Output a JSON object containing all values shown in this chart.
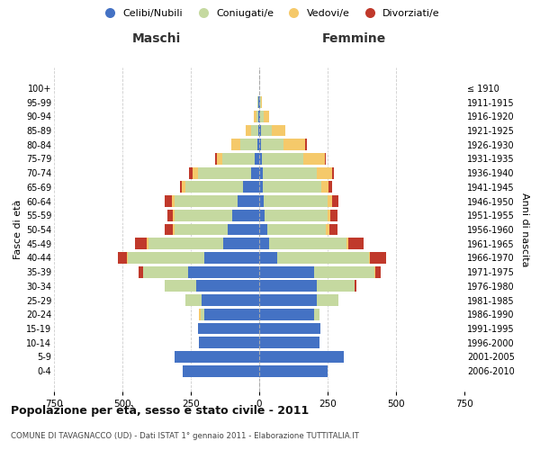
{
  "age_groups": [
    "0-4",
    "5-9",
    "10-14",
    "15-19",
    "20-24",
    "25-29",
    "30-34",
    "35-39",
    "40-44",
    "45-49",
    "50-54",
    "55-59",
    "60-64",
    "65-69",
    "70-74",
    "75-79",
    "80-84",
    "85-89",
    "90-94",
    "95-99",
    "100+"
  ],
  "birth_years": [
    "2006-2010",
    "2001-2005",
    "1996-2000",
    "1991-1995",
    "1986-1990",
    "1981-1985",
    "1976-1980",
    "1971-1975",
    "1966-1970",
    "1961-1965",
    "1956-1960",
    "1951-1955",
    "1946-1950",
    "1941-1945",
    "1936-1940",
    "1931-1935",
    "1926-1930",
    "1921-1925",
    "1916-1920",
    "1911-1915",
    "≤ 1910"
  ],
  "colors": {
    "celibi": "#4472C4",
    "coniugati": "#C5D9A0",
    "vedovi": "#F5C96A",
    "divorziati": "#C0392B"
  },
  "maschi": {
    "celibi": [
      280,
      310,
      220,
      225,
      200,
      210,
      230,
      260,
      200,
      130,
      115,
      100,
      80,
      60,
      30,
      15,
      8,
      4,
      3,
      2,
      0
    ],
    "coniugati": [
      0,
      0,
      0,
      0,
      15,
      60,
      115,
      165,
      280,
      275,
      195,
      210,
      230,
      210,
      195,
      120,
      60,
      25,
      8,
      3,
      0
    ],
    "vedovi": [
      0,
      0,
      0,
      0,
      5,
      0,
      0,
      0,
      5,
      5,
      5,
      5,
      10,
      12,
      20,
      20,
      35,
      20,
      8,
      3,
      0
    ],
    "divorziati": [
      0,
      0,
      0,
      0,
      0,
      0,
      0,
      15,
      30,
      45,
      30,
      20,
      25,
      8,
      10,
      5,
      0,
      0,
      0,
      0,
      0
    ]
  },
  "femmine": {
    "celibi": [
      250,
      310,
      220,
      225,
      200,
      210,
      210,
      200,
      65,
      35,
      30,
      20,
      15,
      12,
      12,
      10,
      8,
      5,
      4,
      2,
      0
    ],
    "coniugati": [
      0,
      0,
      0,
      0,
      20,
      80,
      140,
      220,
      335,
      285,
      215,
      230,
      235,
      215,
      200,
      150,
      80,
      40,
      12,
      3,
      0
    ],
    "vedovi": [
      0,
      0,
      0,
      0,
      0,
      0,
      0,
      5,
      5,
      5,
      10,
      10,
      15,
      25,
      55,
      80,
      80,
      50,
      20,
      5,
      0
    ],
    "divorziati": [
      0,
      0,
      0,
      0,
      0,
      0,
      5,
      20,
      60,
      55,
      30,
      25,
      25,
      15,
      5,
      5,
      5,
      0,
      0,
      0,
      0
    ]
  },
  "xlim": 750,
  "title": "Popolazione per età, sesso e stato civile - 2011",
  "subtitle": "COMUNE DI TAVAGNACCO (UD) - Dati ISTAT 1° gennaio 2011 - Elaborazione TUTTITALIA.IT",
  "ylabel_left": "Fasce di età",
  "ylabel_right": "Anni di nascita",
  "xlabel_maschi": "Maschi",
  "xlabel_femmine": "Femmine",
  "legend_labels": [
    "Celibi/Nubili",
    "Coniugati/e",
    "Vedovi/e",
    "Divorziati/e"
  ],
  "bg_color": "#ffffff",
  "grid_color": "#cccccc"
}
